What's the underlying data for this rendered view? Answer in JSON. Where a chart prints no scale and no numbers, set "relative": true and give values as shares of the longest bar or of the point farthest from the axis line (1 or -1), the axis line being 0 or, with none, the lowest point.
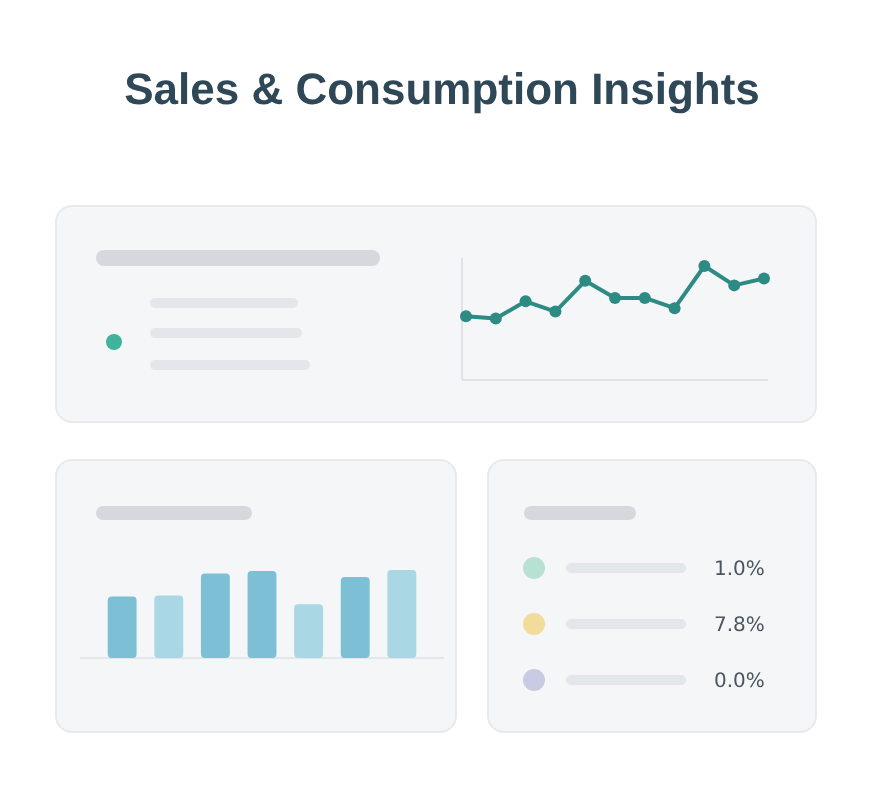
{
  "chart_data": [
    {
      "type": "line",
      "title": "Sales & Consumption Insights",
      "relative": true,
      "categories": [
        null,
        null,
        null,
        null,
        null,
        null,
        null,
        null,
        null,
        null,
        null
      ],
      "series": [
        {
          "color": "#2e8b84",
          "values": [
            0.56,
            0.54,
            0.69,
            0.6,
            0.87,
            0.72,
            0.72,
            0.63,
            1,
            0.83,
            0.89
          ]
        }
      ],
      "marker": "circle"
    },
    {
      "type": "bar",
      "relative": true,
      "categories": [
        null,
        null,
        null,
        null,
        null,
        null,
        null
      ],
      "values": [
        0.7,
        0.71,
        0.96,
        0.99,
        0.61,
        0.92,
        1
      ],
      "colors": [
        "#7dc0d6",
        "#a9d7e3",
        "#7dc0d6",
        "#7dc0d6",
        "#a9d7e3",
        "#7dc0d6",
        "#a9d7e3"
      ]
    },
    {
      "type": "other",
      "categories": [
        null,
        null,
        null
      ],
      "values": [
        1.0,
        7.8,
        0.0
      ],
      "value_labels": [
        "1.0%",
        "7.8%",
        "0.0%"
      ],
      "colors": [
        "#b9e1d3",
        "#f2dc9c",
        "#c8cbe2"
      ]
    }
  ]
}
